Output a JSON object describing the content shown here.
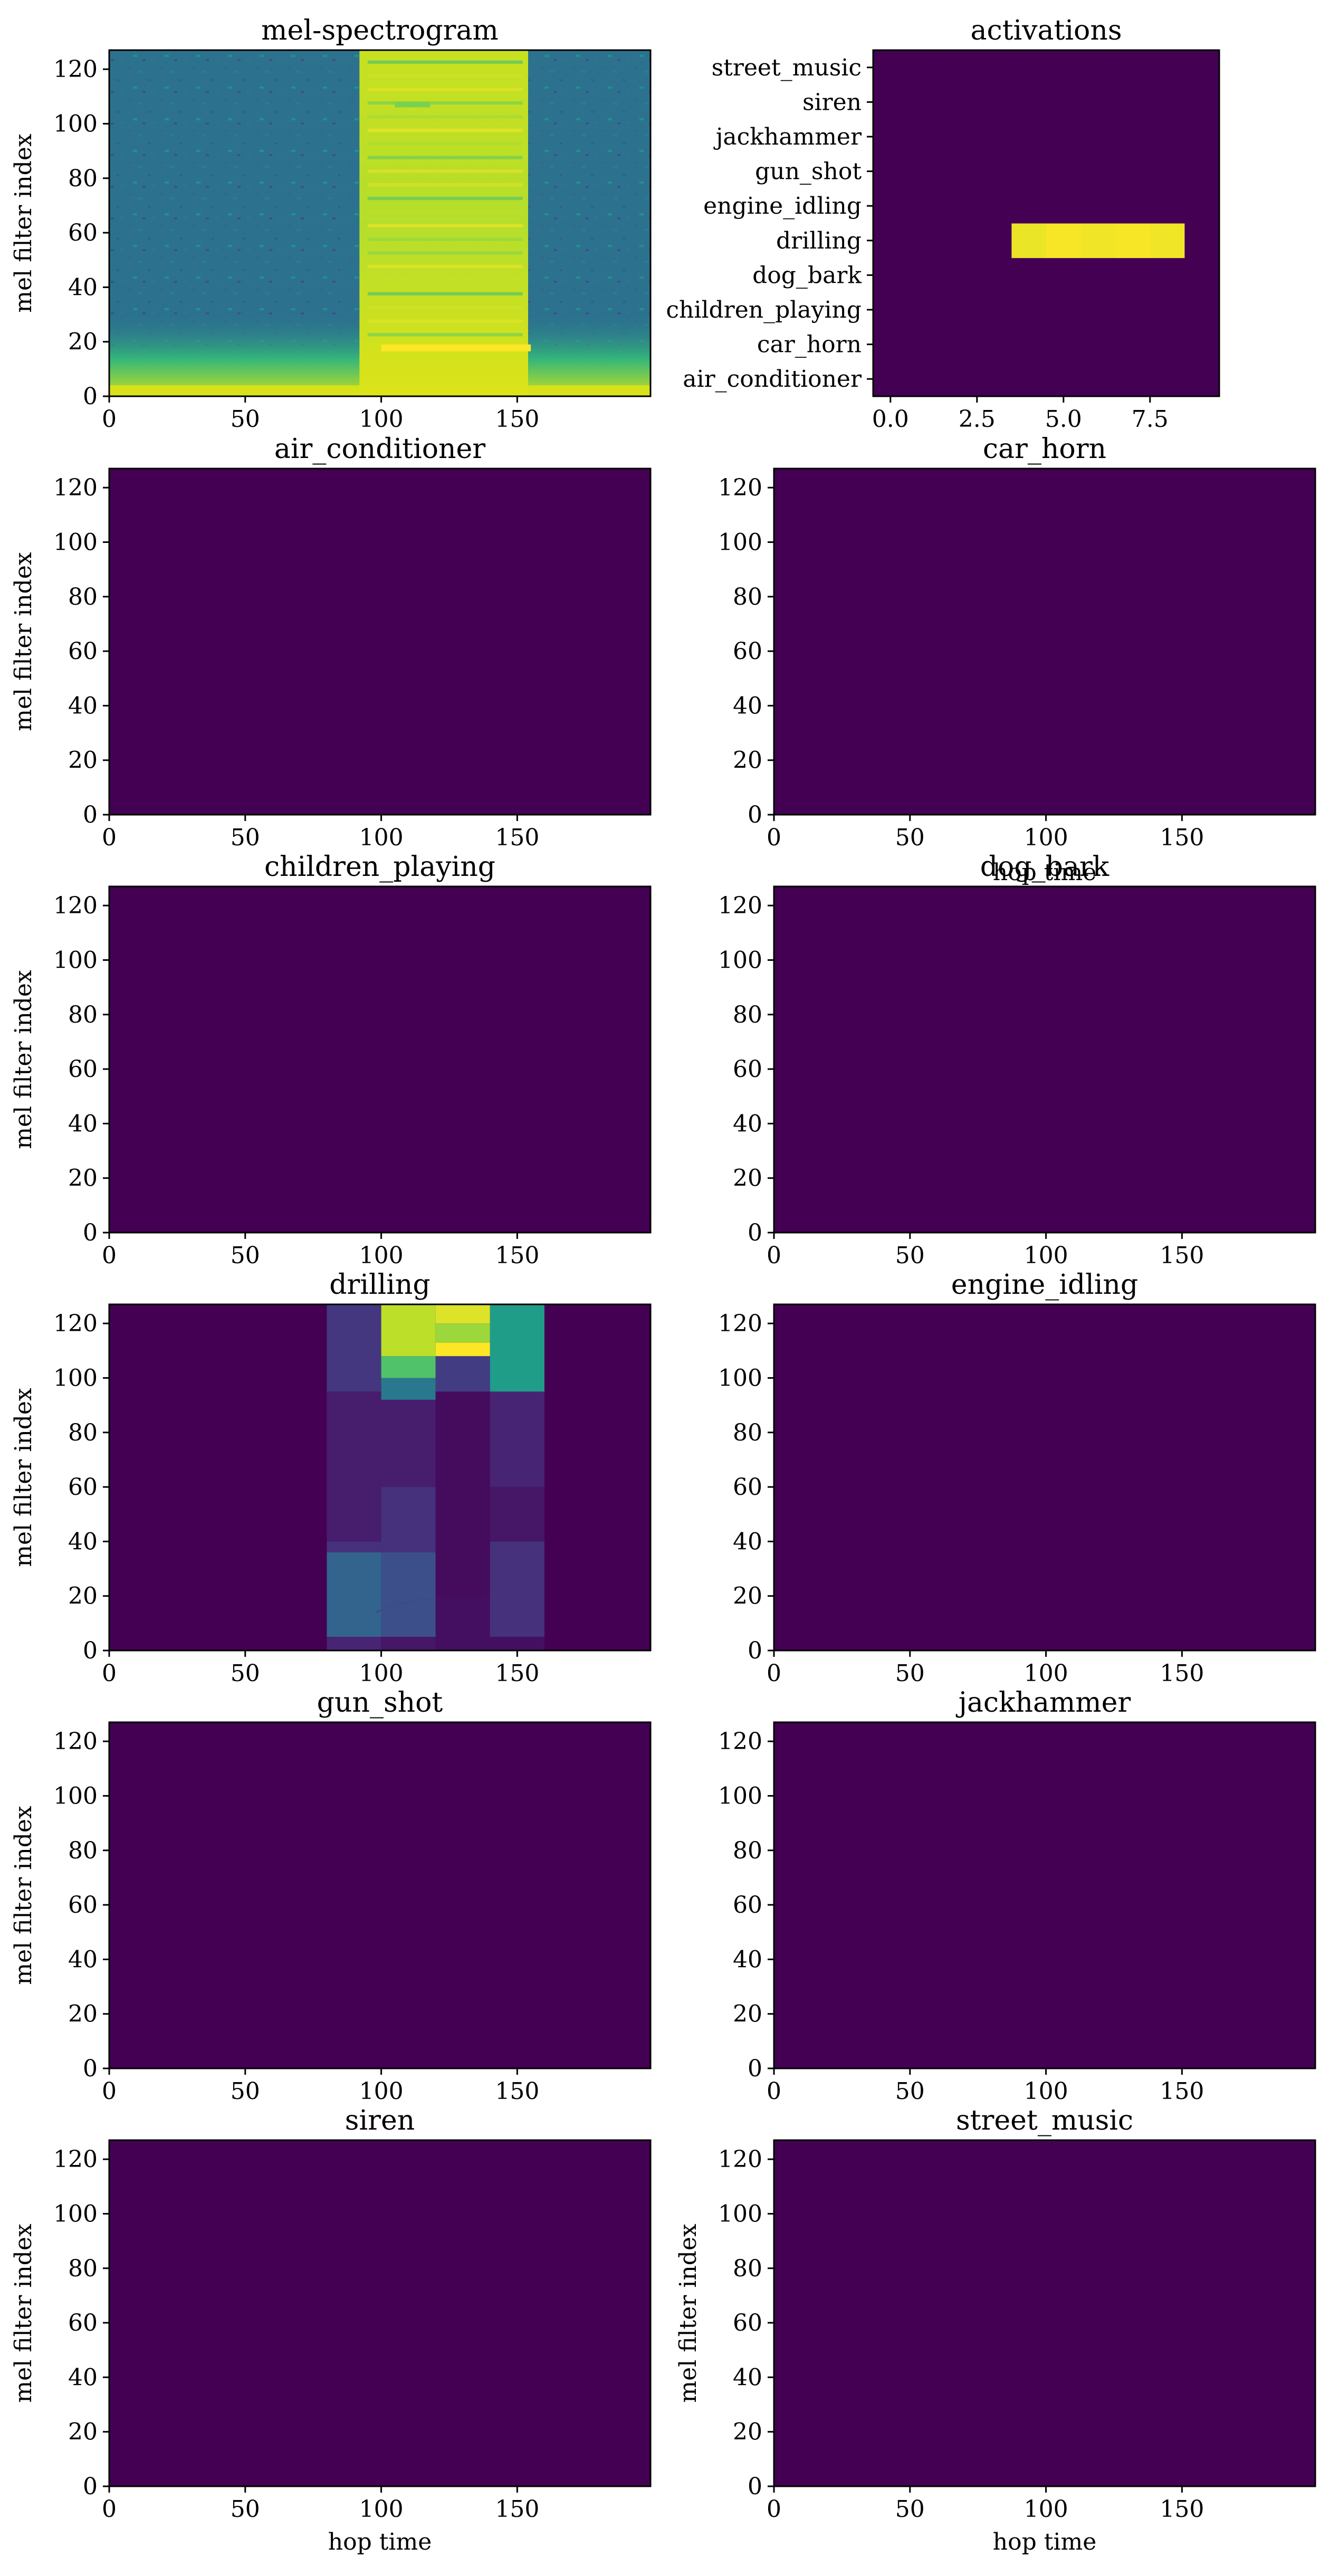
{
  "colors": {
    "empty": "#440154",
    "background": "#ffffff"
  },
  "chart_data": [
    {
      "id": "mel",
      "type": "heatmap",
      "title": "mel-spectrogram",
      "xlabel": "",
      "ylabel": "mel filter index",
      "xlim": [
        0,
        199
      ],
      "ylim": [
        0,
        127
      ],
      "xticks": [
        0,
        50,
        100,
        150
      ],
      "yticks": [
        0,
        20,
        40,
        60,
        80,
        100,
        120
      ],
      "colormap": "viridis",
      "content": "broadband energy (high) between hop time ~92 and ~154; noise elsewhere; strong low-frequency band below mel index ~10; tonal line near index 17-18 inside the event"
    },
    {
      "id": "act",
      "type": "heatmap",
      "title": "activations",
      "xlabel": "",
      "ylabel": "",
      "xlim": [
        -0.5,
        9.5
      ],
      "xticks": [
        0.0,
        2.5,
        5.0,
        7.5
      ],
      "categories": [
        "air_conditioner",
        "car_horn",
        "children_playing",
        "dog_bark",
        "drilling",
        "engine_idling",
        "gun_shot",
        "jackhammer",
        "siren",
        "street_music"
      ],
      "values": [
        [
          0,
          0,
          0,
          0,
          0,
          0,
          0,
          0,
          0,
          0
        ],
        [
          0,
          0,
          0,
          0,
          0,
          0,
          0,
          0,
          0,
          0
        ],
        [
          0,
          0,
          0,
          0,
          0,
          0,
          0,
          0,
          0,
          0
        ],
        [
          0,
          0,
          0,
          0,
          0,
          0,
          0,
          0,
          0,
          0
        ],
        [
          0,
          0,
          0,
          0,
          0.97,
          0.99,
          0.98,
          0.99,
          0.98,
          0
        ],
        [
          0,
          0,
          0,
          0,
          0,
          0,
          0,
          0,
          0,
          0
        ],
        [
          0,
          0,
          0,
          0,
          0,
          0,
          0,
          0,
          0,
          0
        ],
        [
          0,
          0,
          0,
          0,
          0,
          0,
          0,
          0,
          0,
          0
        ],
        [
          0,
          0,
          0,
          0,
          0,
          0,
          0,
          0,
          0,
          0
        ],
        [
          0,
          0,
          0,
          0,
          0,
          0,
          0,
          0,
          0,
          0
        ]
      ]
    },
    {
      "id": "air_conditioner",
      "type": "heatmap",
      "title": "air_conditioner",
      "xlabel": "",
      "ylabel": "mel filter index",
      "xlim": [
        0,
        199
      ],
      "ylim": [
        0,
        127
      ],
      "xticks": [
        0,
        50,
        100,
        150
      ],
      "yticks": [
        0,
        20,
        40,
        60,
        80,
        100,
        120
      ],
      "content": "all zero"
    },
    {
      "id": "car_horn",
      "type": "heatmap",
      "title": "car_horn",
      "xlabel": "",
      "ylabel": "",
      "xlim": [
        0,
        199
      ],
      "ylim": [
        0,
        127
      ],
      "xticks": [
        0,
        50,
        100,
        150
      ],
      "yticks": [
        0,
        20,
        40,
        60,
        80,
        100,
        120
      ],
      "content": "all zero"
    },
    {
      "id": "children_playing",
      "type": "heatmap",
      "title": "children_playing",
      "xlabel": "",
      "ylabel": "mel filter index",
      "xlim": [
        0,
        199
      ],
      "ylim": [
        0,
        127
      ],
      "xticks": [
        0,
        50,
        100,
        150
      ],
      "yticks": [
        0,
        20,
        40,
        60,
        80,
        100,
        120
      ],
      "content": "all zero"
    },
    {
      "id": "dog_bark",
      "type": "heatmap",
      "title": "dog_bark",
      "xlabel": "",
      "ylabel": "",
      "xlim": [
        0,
        199
      ],
      "ylim": [
        0,
        127
      ],
      "xticks": [
        0,
        50,
        100,
        150
      ],
      "yticks": [
        0,
        20,
        40,
        60,
        80,
        100,
        120
      ],
      "content": "all zero"
    },
    {
      "id": "drilling",
      "type": "heatmap",
      "title": "drilling",
      "xlabel": "",
      "ylabel": "mel filter index",
      "xlim": [
        0,
        199
      ],
      "ylim": [
        0,
        127
      ],
      "xticks": [
        0,
        50,
        100,
        150
      ],
      "yticks": [
        0,
        20,
        40,
        60,
        80,
        100,
        120
      ],
      "segments": [
        {
          "x0": 80,
          "x1": 100,
          "levels": [
            [
              0,
              5,
              0.1
            ],
            [
              5,
              36,
              0.32
            ],
            [
              36,
              40,
              0.14
            ],
            [
              40,
              95,
              0.08
            ],
            [
              95,
              127,
              0.16
            ]
          ]
        },
        {
          "x0": 100,
          "x1": 120,
          "levels": [
            [
              0,
              5,
              0.06
            ],
            [
              5,
              36,
              0.24
            ],
            [
              36,
              60,
              0.14
            ],
            [
              60,
              92,
              0.08
            ],
            [
              92,
              100,
              0.4
            ],
            [
              100,
              108,
              0.72
            ],
            [
              108,
              127,
              0.9
            ]
          ]
        },
        {
          "x0": 120,
          "x1": 140,
          "levels": [
            [
              0,
              20,
              0.04
            ],
            [
              20,
              95,
              0.03
            ],
            [
              95,
              108,
              0.18
            ],
            [
              108,
              113,
              1.0
            ],
            [
              113,
              120,
              0.85
            ],
            [
              120,
              127,
              0.95
            ]
          ]
        },
        {
          "x0": 140,
          "x1": 160,
          "levels": [
            [
              0,
              5,
              0.04
            ],
            [
              5,
              40,
              0.14
            ],
            [
              40,
              60,
              0.06
            ],
            [
              60,
              95,
              0.1
            ],
            [
              95,
              127,
              0.55
            ]
          ]
        }
      ]
    },
    {
      "id": "engine_idling",
      "type": "heatmap",
      "title": "engine_idling",
      "xlabel": "",
      "ylabel": "",
      "xlim": [
        0,
        199
      ],
      "ylim": [
        0,
        127
      ],
      "xticks": [
        0,
        50,
        100,
        150
      ],
      "yticks": [
        0,
        20,
        40,
        60,
        80,
        100,
        120
      ],
      "content": "all zero"
    },
    {
      "id": "gun_shot",
      "type": "heatmap",
      "title": "gun_shot",
      "xlabel": "",
      "ylabel": "mel filter index",
      "xlim": [
        0,
        199
      ],
      "ylim": [
        0,
        127
      ],
      "xticks": [
        0,
        50,
        100,
        150
      ],
      "yticks": [
        0,
        20,
        40,
        60,
        80,
        100,
        120
      ],
      "content": "all zero"
    },
    {
      "id": "jackhammer",
      "type": "heatmap",
      "title": "jackhammer",
      "xlabel": "",
      "ylabel": "",
      "xlim": [
        0,
        199
      ],
      "ylim": [
        0,
        127
      ],
      "xticks": [
        0,
        50,
        100,
        150
      ],
      "yticks": [
        0,
        20,
        40,
        60,
        80,
        100,
        120
      ],
      "content": "all zero"
    },
    {
      "id": "siren",
      "type": "heatmap",
      "title": "siren",
      "xlabel": "hop time",
      "ylabel": "mel filter index",
      "xlim": [
        0,
        199
      ],
      "ylim": [
        0,
        127
      ],
      "xticks": [
        0,
        50,
        100,
        150
      ],
      "yticks": [
        0,
        20,
        40,
        60,
        80,
        100,
        120
      ],
      "content": "all zero"
    },
    {
      "id": "street_music",
      "type": "heatmap",
      "title": "street_music",
      "xlabel": "hop time",
      "ylabel": "mel filter index",
      "xlim": [
        0,
        199
      ],
      "ylim": [
        0,
        127
      ],
      "xticks": [
        0,
        50,
        100,
        150
      ],
      "yticks": [
        0,
        20,
        40,
        60,
        80,
        100,
        120
      ],
      "content": "all zero"
    }
  ],
  "stray_labels": {
    "dog_bark_xlabel": "hop time"
  }
}
